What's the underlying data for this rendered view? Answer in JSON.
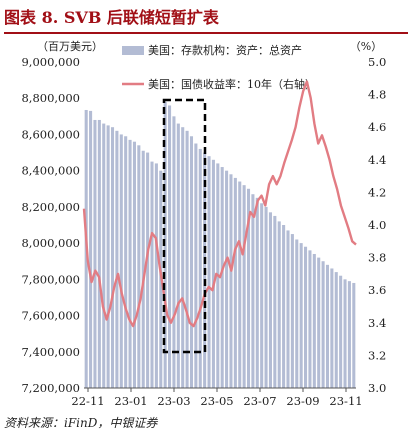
{
  "title": "图表 8. SVB 后联储短暂扩表",
  "source": "资料来源：iFinD，中银证券",
  "chart_data": {
    "type": "bar+line",
    "left_unit": "（百万美元）",
    "right_unit": "（%）",
    "left_ylim": [
      7200000,
      9000000
    ],
    "right_ylim": [
      3.0,
      5.0
    ],
    "left_ticks": [
      "9,000,000",
      "8,800,000",
      "8,600,000",
      "8,400,000",
      "8,200,000",
      "8,000,000",
      "7,800,000",
      "7,600,000",
      "7,400,000",
      "7,200,000"
    ],
    "right_ticks": [
      "5.0",
      "4.8",
      "4.6",
      "4.4",
      "4.2",
      "4.0",
      "3.8",
      "3.6",
      "3.4",
      "3.2",
      "3.0"
    ],
    "x_labels": [
      "22-11",
      "23-01",
      "23-03",
      "23-05",
      "23-07",
      "23-09",
      "23-11"
    ],
    "highlight_range": [
      "23-03",
      "23-05"
    ],
    "colors": {
      "bars": "#b3bcd4",
      "line": "#e27c83",
      "box": "#000000"
    },
    "series": [
      {
        "name": "美国：存款机构：资产：总资产",
        "type": "bar",
        "axis": "left",
        "values": [
          8735000,
          8730000,
          8680000,
          8680000,
          8660000,
          8650000,
          8640000,
          8620000,
          8600000,
          8590000,
          8570000,
          8560000,
          8540000,
          8510000,
          8500000,
          8450000,
          8440000,
          8400000,
          8780000,
          8760000,
          8700000,
          8660000,
          8640000,
          8620000,
          8590000,
          8550000,
          8520000,
          8500000,
          8480000,
          8460000,
          8440000,
          8420000,
          8400000,
          8380000,
          8360000,
          8340000,
          8320000,
          8300000,
          8270000,
          8250000,
          8220000,
          8200000,
          8170000,
          8150000,
          8120000,
          8100000,
          8070000,
          8050000,
          8020000,
          8000000,
          7980000,
          7960000,
          7940000,
          7920000,
          7900000,
          7880000,
          7860000,
          7840000,
          7820000,
          7800000,
          7790000,
          7780000
        ]
      },
      {
        "name": "美国：国债收益率：10年（右轴）",
        "type": "line",
        "axis": "right",
        "values": [
          4.1,
          3.78,
          3.65,
          3.72,
          3.68,
          3.5,
          3.42,
          3.5,
          3.62,
          3.7,
          3.58,
          3.49,
          3.42,
          3.38,
          3.45,
          3.55,
          3.7,
          3.85,
          3.95,
          3.92,
          3.75,
          3.6,
          3.45,
          3.4,
          3.45,
          3.52,
          3.55,
          3.48,
          3.4,
          3.38,
          3.43,
          3.5,
          3.58,
          3.62,
          3.6,
          3.7,
          3.68,
          3.75,
          3.8,
          3.72,
          3.85,
          3.9,
          3.82,
          3.95,
          4.08,
          4.05,
          4.15,
          4.18,
          4.12,
          4.25,
          4.3,
          4.25,
          4.3,
          4.38,
          4.45,
          4.52,
          4.6,
          4.72,
          4.82,
          4.88,
          4.78,
          4.62,
          4.5,
          4.55,
          4.48,
          4.4,
          4.3,
          4.22,
          4.12,
          4.05,
          3.98,
          3.9,
          3.88
        ]
      }
    ]
  }
}
